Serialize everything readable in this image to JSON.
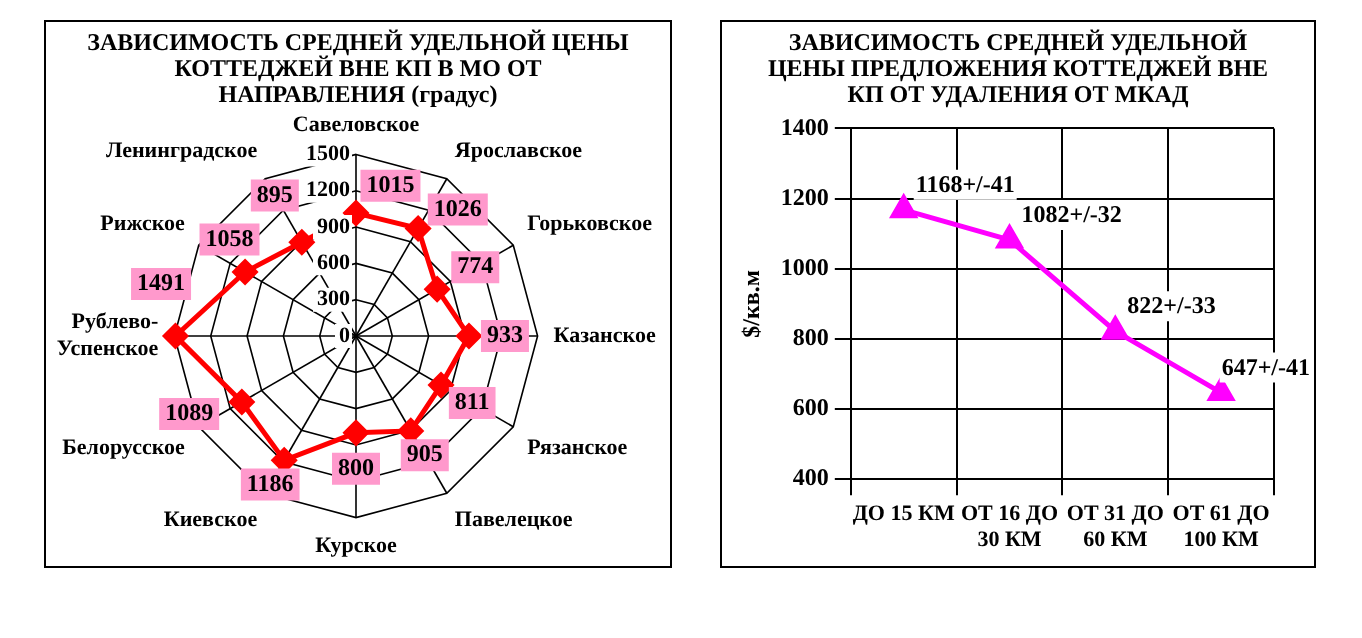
{
  "chart_data": [
    {
      "type": "radar",
      "title": "ЗАВИСИМОСТЬ СРЕДНЕЙ УДЕЛЬНОЙ ЦЕНЫ КОТТЕДЖЕЙ ВНЕ КП В МО  ОТ НАПРАВЛЕНИЯ (градус)",
      "categories": [
        "Савеловское",
        "Ярославское",
        "Горьковское",
        "Казанское",
        "Рязанское",
        "Павелецкое",
        "Курское",
        "Киевское",
        "Белорусское",
        "Рублево-Успенское",
        "Рижское",
        "Ленинградское"
      ],
      "values": [
        1015,
        1026,
        774,
        933,
        811,
        905,
        800,
        1186,
        1089,
        1491,
        1058,
        895
      ],
      "color": "#ff0000",
      "ylim": [
        0,
        1500
      ],
      "yticks": [
        0,
        300,
        600,
        900,
        1200,
        1500
      ],
      "grid": true,
      "marker": "diamond",
      "data_labels": true
    },
    {
      "type": "line",
      "title": "ЗАВИСИМОСТЬ СРЕДНЕЙ УДЕЛЬНОЙ ЦЕНЫ ПРЕДЛОЖЕНИЯ КОТТЕДЖЕЙ ВНЕ КП ОТ УДАЛЕНИЯ ОТ МКАД",
      "ylabel": "$/кв.м",
      "categories": [
        "ДО 15 КМ",
        "ОТ 16 ДО 30 КМ",
        "ОТ 31 ДО 60 КМ",
        "ОТ 61 ДО 100 КМ"
      ],
      "values": [
        1168,
        1082,
        822,
        647
      ],
      "value_labels": [
        "1168+/-41",
        "1082+/-32",
        "822+/-33",
        "647+/-41"
      ],
      "color": "#ff00ff",
      "ylim": [
        400,
        1400
      ],
      "yticks": [
        400,
        600,
        800,
        1000,
        1200,
        1400
      ],
      "grid": true,
      "marker": "triangle"
    }
  ]
}
